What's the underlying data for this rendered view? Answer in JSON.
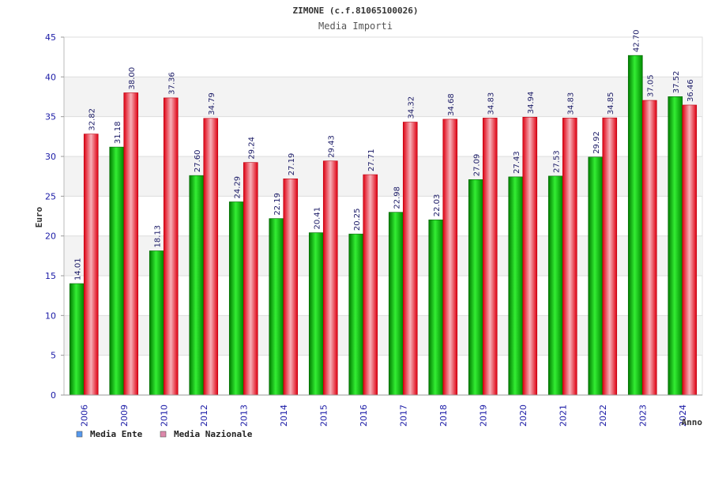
{
  "chart_data": {
    "type": "bar",
    "title": "ZIMONE (c.f.81065100026)",
    "subtitle": "Media Importi",
    "xlabel": "Anno",
    "ylabel": "Euro",
    "ylim": [
      0,
      45
    ],
    "yticks": [
      0,
      5,
      10,
      15,
      20,
      25,
      30,
      35,
      40,
      45
    ],
    "categories": [
      "2006",
      "2009",
      "2010",
      "2012",
      "2013",
      "2014",
      "2015",
      "2016",
      "2017",
      "2018",
      "2019",
      "2020",
      "2021",
      "2022",
      "2023",
      "2024"
    ],
    "series": [
      {
        "name": "Media Ente",
        "color": "#00cc00",
        "legend_color": "#5599ee",
        "values": [
          14.01,
          31.18,
          18.13,
          27.6,
          24.29,
          22.19,
          20.41,
          20.25,
          22.98,
          22.03,
          27.09,
          27.43,
          27.53,
          29.92,
          42.7,
          37.52
        ],
        "labels": [
          "14.01",
          "31.18",
          "18.13",
          "27.60",
          "24.29",
          "22.19",
          "20.41",
          "20.25",
          "22.98",
          "22.03",
          "27.09",
          "27.43",
          "27.53",
          "29.92",
          "42.70",
          "37.52"
        ]
      },
      {
        "name": "Media Nazionale",
        "color": "#ee1122",
        "legend_color": "#dd88aa",
        "values": [
          32.82,
          38.0,
          37.36,
          34.79,
          29.24,
          27.19,
          29.43,
          27.71,
          34.32,
          34.68,
          34.83,
          34.94,
          34.83,
          34.85,
          37.05,
          36.46
        ],
        "labels": [
          "32.82",
          "38.00",
          "37.36",
          "34.79",
          "29.24",
          "27.19",
          "29.43",
          "27.71",
          "34.32",
          "34.68",
          "34.83",
          "34.94",
          "34.83",
          "34.85",
          "37.05",
          "36.46"
        ]
      }
    ],
    "grid": true,
    "legend_position": "bottom-left"
  }
}
